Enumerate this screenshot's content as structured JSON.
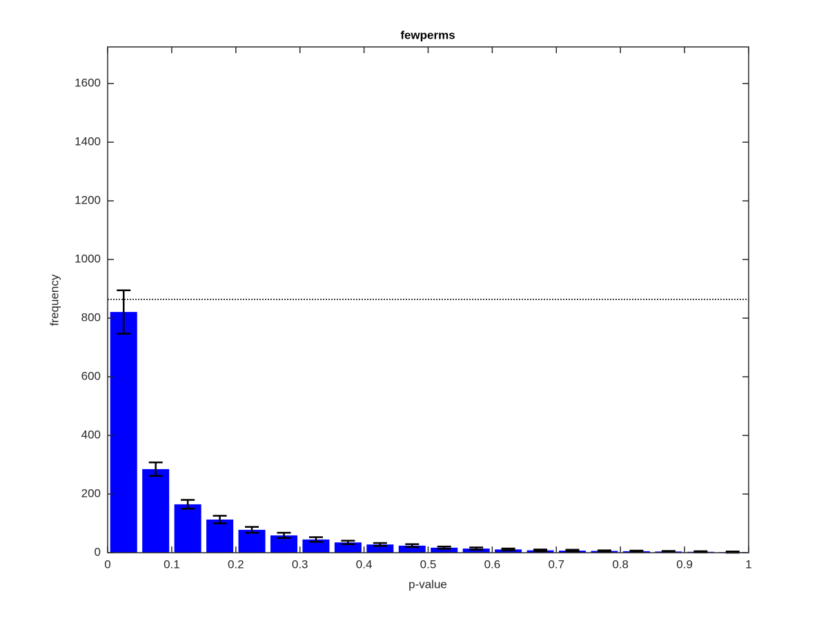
{
  "chart_data": {
    "type": "histogram",
    "title": "fewperms",
    "xlabel": "p-value",
    "ylabel": "frequency",
    "bins": [
      0,
      0.05,
      0.1,
      0.15,
      0.2,
      0.25,
      0.3,
      0.35,
      0.4,
      0.45,
      0.5,
      0.55,
      0.6,
      0.65,
      0.7,
      0.75,
      0.8,
      0.85,
      0.9,
      0.95,
      1
    ],
    "values": [
      821,
      285,
      165,
      113,
      78,
      59,
      45,
      35,
      28,
      24,
      17,
      14,
      11,
      8,
      7,
      6,
      5,
      4,
      3,
      2
    ],
    "errors": [
      74,
      23,
      15,
      13,
      10,
      9,
      8,
      6,
      5,
      5,
      4,
      4,
      3,
      3,
      3,
      2,
      2,
      2,
      2,
      2
    ],
    "color": "#0000ff",
    "reference_line": 864,
    "xlim": [
      0,
      1
    ],
    "xticks": [
      0,
      0.1,
      0.2,
      0.3,
      0.4,
      0.5,
      0.6,
      0.7,
      0.8,
      0.9,
      1
    ],
    "ylim": [
      0,
      1725
    ],
    "yticks": [
      0,
      200,
      400,
      600,
      800,
      1000,
      1200,
      1400,
      1600
    ],
    "grid": false
  }
}
